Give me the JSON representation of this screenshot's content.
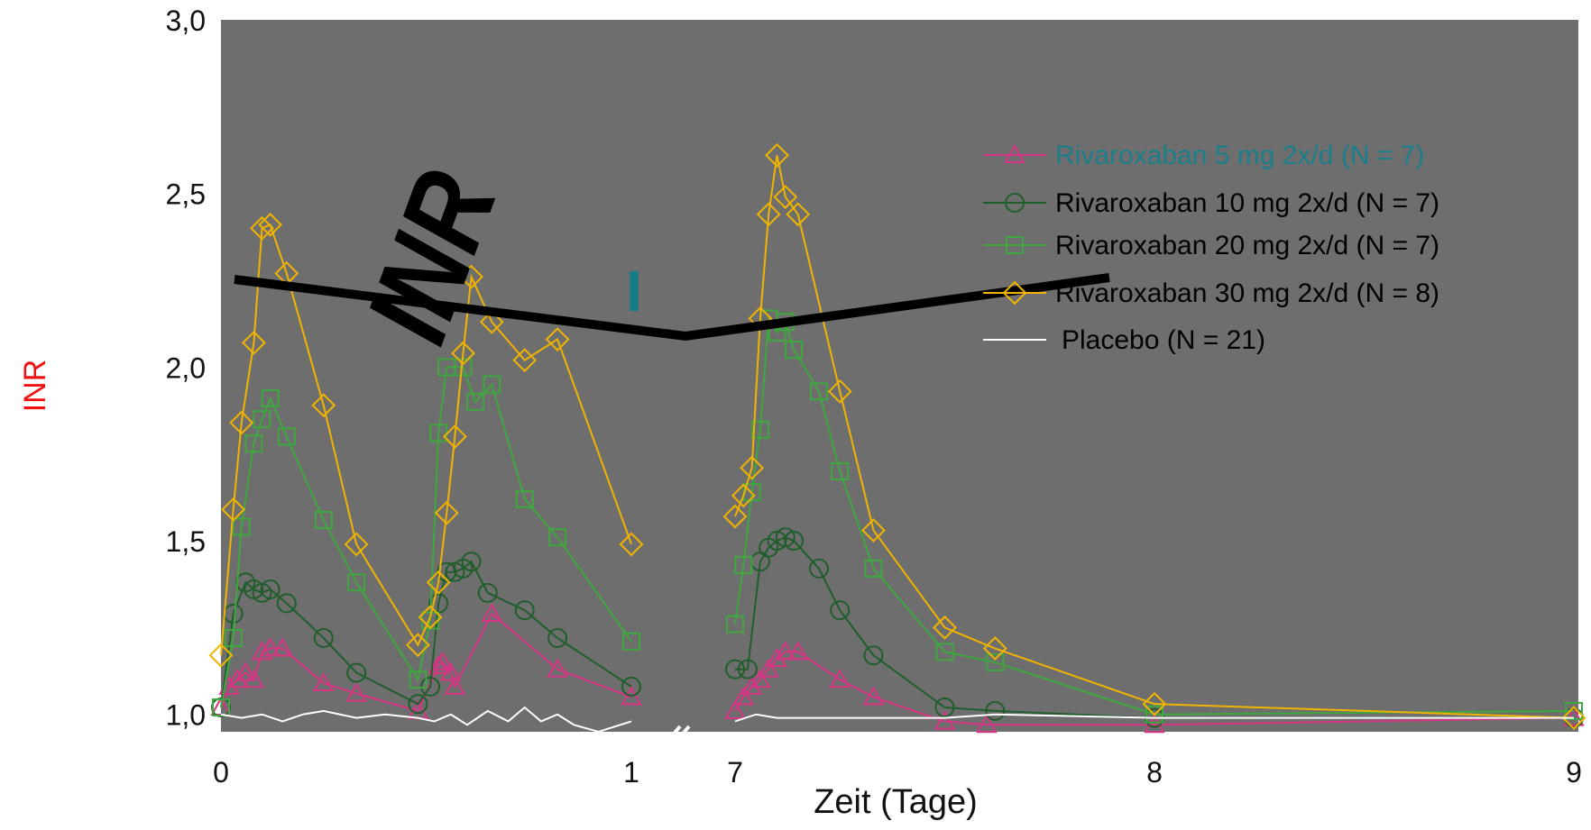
{
  "chart_data": {
    "type": "line",
    "title": "INR",
    "title_marker": "I",
    "ylabel": "INR",
    "xlabel": "Zeit (Tage)",
    "ylim": [
      0.95,
      3.0
    ],
    "yticks": [
      "1,0",
      "1,5",
      "2,0",
      "2,5",
      "3,0"
    ],
    "xticks": [
      "0",
      "1",
      "7",
      "8",
      "9"
    ],
    "x_axis_break": true,
    "grid": false,
    "background_color": "#6e6e6e",
    "legend_position": "right",
    "series": [
      {
        "name": "Rivaroxaban 5 mg 2x/d (N = 7)",
        "color": "#d63384",
        "label_color": "#1a7f8a",
        "marker": "triangle",
        "points": [
          [
            0.0,
            1.02
          ],
          [
            0.02,
            1.08
          ],
          [
            0.04,
            1.1
          ],
          [
            0.06,
            1.12
          ],
          [
            0.08,
            1.1
          ],
          [
            0.1,
            1.18
          ],
          [
            0.12,
            1.19
          ],
          [
            0.15,
            1.19
          ],
          [
            0.25,
            1.09
          ],
          [
            0.33,
            1.06
          ],
          [
            0.48,
            1.01
          ],
          [
            0.53,
            1.14
          ],
          [
            0.54,
            1.15
          ],
          [
            0.56,
            1.12
          ],
          [
            0.57,
            1.08
          ],
          [
            0.66,
            1.29
          ],
          [
            0.82,
            1.13
          ],
          [
            1.0,
            1.05
          ],
          [
            7.0,
            1.01
          ],
          [
            7.02,
            1.05
          ],
          [
            7.04,
            1.08
          ],
          [
            7.06,
            1.1
          ],
          [
            7.08,
            1.13
          ],
          [
            7.1,
            1.16
          ],
          [
            7.12,
            1.18
          ],
          [
            7.15,
            1.18
          ],
          [
            7.25,
            1.1
          ],
          [
            7.33,
            1.05
          ],
          [
            7.5,
            0.98
          ],
          [
            7.6,
            0.97
          ],
          [
            8.0,
            0.97
          ],
          [
            9.0,
            0.99
          ]
        ]
      },
      {
        "name": "Rivaroxaban 10 mg 2x/d (N = 7)",
        "color": "#1f5e2a",
        "marker": "circle",
        "points": [
          [
            0.0,
            1.02
          ],
          [
            0.03,
            1.29
          ],
          [
            0.06,
            1.38
          ],
          [
            0.08,
            1.36
          ],
          [
            0.1,
            1.35
          ],
          [
            0.12,
            1.36
          ],
          [
            0.16,
            1.32
          ],
          [
            0.25,
            1.22
          ],
          [
            0.33,
            1.12
          ],
          [
            0.48,
            1.03
          ],
          [
            0.51,
            1.08
          ],
          [
            0.53,
            1.32
          ],
          [
            0.55,
            1.41
          ],
          [
            0.57,
            1.41
          ],
          [
            0.59,
            1.42
          ],
          [
            0.61,
            1.44
          ],
          [
            0.65,
            1.35
          ],
          [
            0.74,
            1.3
          ],
          [
            0.82,
            1.22
          ],
          [
            1.0,
            1.08
          ],
          [
            7.0,
            1.13
          ],
          [
            7.03,
            1.13
          ],
          [
            7.06,
            1.44
          ],
          [
            7.08,
            1.48
          ],
          [
            7.1,
            1.5
          ],
          [
            7.12,
            1.51
          ],
          [
            7.14,
            1.5
          ],
          [
            7.2,
            1.42
          ],
          [
            7.25,
            1.3
          ],
          [
            7.33,
            1.17
          ],
          [
            7.5,
            1.02
          ],
          [
            7.62,
            1.01
          ],
          [
            8.0,
            0.99
          ],
          [
            9.0,
            0.99
          ]
        ]
      },
      {
        "name": "Rivaroxaban 20 mg 2x/d (N = 7)",
        "color": "#3ea83e",
        "marker": "square",
        "points": [
          [
            0.0,
            1.02
          ],
          [
            0.03,
            1.22
          ],
          [
            0.05,
            1.54
          ],
          [
            0.08,
            1.78
          ],
          [
            0.1,
            1.85
          ],
          [
            0.12,
            1.91
          ],
          [
            0.16,
            1.8
          ],
          [
            0.25,
            1.56
          ],
          [
            0.33,
            1.38
          ],
          [
            0.48,
            1.1
          ],
          [
            0.51,
            1.27
          ],
          [
            0.53,
            1.81
          ],
          [
            0.55,
            2.0
          ],
          [
            0.59,
            2.0
          ],
          [
            0.62,
            1.9
          ],
          [
            0.66,
            1.95
          ],
          [
            0.74,
            1.62
          ],
          [
            0.82,
            1.51
          ],
          [
            1.0,
            1.21
          ],
          [
            7.0,
            1.26
          ],
          [
            7.02,
            1.43
          ],
          [
            7.04,
            1.64
          ],
          [
            7.06,
            1.82
          ],
          [
            7.08,
            2.14
          ],
          [
            7.1,
            2.1
          ],
          [
            7.12,
            2.13
          ],
          [
            7.14,
            2.05
          ],
          [
            7.2,
            1.93
          ],
          [
            7.25,
            1.7
          ],
          [
            7.33,
            1.42
          ],
          [
            7.5,
            1.18
          ],
          [
            7.62,
            1.15
          ],
          [
            8.0,
            1.0
          ],
          [
            9.0,
            1.01
          ]
        ]
      },
      {
        "name": "Rivaroxaban 30 mg 2x/d (N = 8)",
        "color": "#f0b400",
        "marker": "diamond",
        "points": [
          [
            0.0,
            1.17
          ],
          [
            0.03,
            1.59
          ],
          [
            0.05,
            1.84
          ],
          [
            0.08,
            2.07
          ],
          [
            0.1,
            2.4
          ],
          [
            0.12,
            2.41
          ],
          [
            0.16,
            2.27
          ],
          [
            0.25,
            1.89
          ],
          [
            0.33,
            1.49
          ],
          [
            0.48,
            1.2
          ],
          [
            0.51,
            1.28
          ],
          [
            0.53,
            1.38
          ],
          [
            0.55,
            1.58
          ],
          [
            0.57,
            1.8
          ],
          [
            0.59,
            2.04
          ],
          [
            0.61,
            2.26
          ],
          [
            0.66,
            2.13
          ],
          [
            0.74,
            2.02
          ],
          [
            0.82,
            2.08
          ],
          [
            1.0,
            1.49
          ],
          [
            7.0,
            1.57
          ],
          [
            7.02,
            1.63
          ],
          [
            7.04,
            1.71
          ],
          [
            7.06,
            2.14
          ],
          [
            7.08,
            2.44
          ],
          [
            7.1,
            2.61
          ],
          [
            7.12,
            2.49
          ],
          [
            7.15,
            2.44
          ],
          [
            7.25,
            1.93
          ],
          [
            7.33,
            1.53
          ],
          [
            7.5,
            1.25
          ],
          [
            7.62,
            1.19
          ],
          [
            8.0,
            1.03
          ],
          [
            9.0,
            0.99
          ]
        ]
      },
      {
        "name": "Placebo (N = 21)",
        "color": "#ffffff",
        "marker": "none",
        "points": [
          [
            0.0,
            1.0
          ],
          [
            0.05,
            0.99
          ],
          [
            0.1,
            1.0
          ],
          [
            0.15,
            0.98
          ],
          [
            0.2,
            1.0
          ],
          [
            0.25,
            1.01
          ],
          [
            0.33,
            0.99
          ],
          [
            0.4,
            1.0
          ],
          [
            0.48,
            0.99
          ],
          [
            0.52,
            0.98
          ],
          [
            0.56,
            1.0
          ],
          [
            0.6,
            0.97
          ],
          [
            0.65,
            1.01
          ],
          [
            0.7,
            0.98
          ],
          [
            0.74,
            1.02
          ],
          [
            0.78,
            0.98
          ],
          [
            0.82,
            1.0
          ],
          [
            0.86,
            0.97
          ],
          [
            0.92,
            0.95
          ],
          [
            1.0,
            0.98
          ],
          [
            7.0,
            0.98
          ],
          [
            7.05,
            1.0
          ],
          [
            7.1,
            0.99
          ],
          [
            7.2,
            0.99
          ],
          [
            7.33,
            0.99
          ],
          [
            7.5,
            0.99
          ],
          [
            7.62,
            1.0
          ],
          [
            8.0,
            0.99
          ],
          [
            9.0,
            0.99
          ]
        ]
      }
    ]
  }
}
